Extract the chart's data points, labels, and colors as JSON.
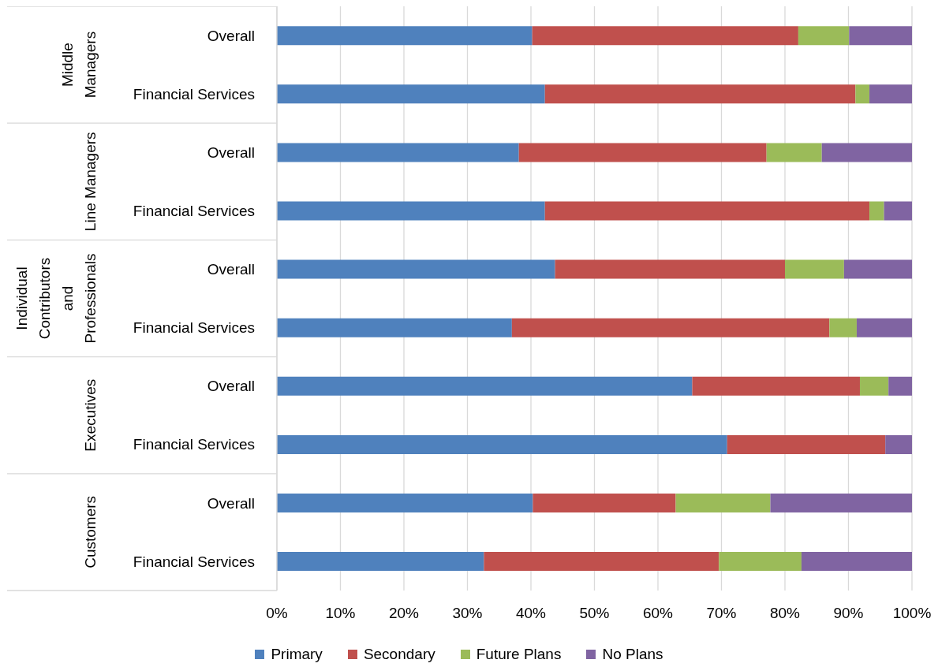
{
  "chart_data": {
    "type": "bar",
    "orientation": "horizontal",
    "stacked": true,
    "categories": [
      "Overall",
      "Financial Services",
      "Overall",
      "Financial Services",
      "Overall",
      "Financial Services",
      "Overall",
      "Financial Services",
      "Overall",
      "Financial Services"
    ],
    "series": [
      {
        "name": "Primary",
        "color": "#4f81bd",
        "values": [
          40.2,
          42.2,
          38.1,
          42.2,
          43.8,
          37.0,
          65.4,
          70.9,
          40.3,
          32.6
        ]
      },
      {
        "name": "Secondary",
        "color": "#c0504d",
        "values": [
          41.9,
          48.9,
          39.0,
          51.1,
          36.2,
          50.0,
          26.4,
          24.9,
          22.5,
          37.0
        ]
      },
      {
        "name": "Future Plans",
        "color": "#9bbb59",
        "values": [
          8.0,
          2.2,
          8.7,
          2.3,
          9.3,
          4.3,
          4.5,
          0,
          14.9,
          13.0
        ]
      },
      {
        "name": "No Plans",
        "color": "#8064a2",
        "values": [
          9.9,
          6.7,
          14.2,
          4.4,
          10.7,
          8.7,
          3.7,
          4.2,
          22.3,
          17.4
        ]
      }
    ],
    "xlim": [
      0,
      100
    ],
    "xticks": [
      {
        "value": 0,
        "label": "0%"
      },
      {
        "value": 10,
        "label": "10%"
      },
      {
        "value": 20,
        "label": "20%"
      },
      {
        "value": 30,
        "label": "30%"
      },
      {
        "value": 40,
        "label": "40%"
      },
      {
        "value": 50,
        "label": "50%"
      },
      {
        "value": 60,
        "label": "60%"
      },
      {
        "value": 70,
        "label": "70%"
      },
      {
        "value": 80,
        "label": "80%"
      },
      {
        "value": 90,
        "label": "90%"
      },
      {
        "value": 100,
        "label": "100%"
      }
    ],
    "grid": "x",
    "legend": "bottom",
    "annotations": [
      "Middle Managers",
      "Line Managers",
      "Individual Contributors and Professionals",
      "Executives",
      "Customers"
    ]
  }
}
